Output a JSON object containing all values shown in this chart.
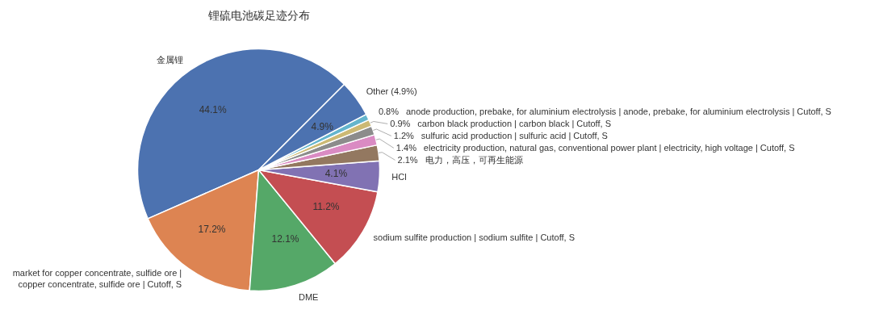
{
  "chart_data": {
    "type": "pie",
    "title": "锂硫电池碳足迹分布",
    "categories": [
      "金属锂",
      "market for copper concentrate, sulfide ore | copper concentrate, sulfide ore | Cutoff, S",
      "DME",
      "sodium sulfite production | sodium sulfite | Cutoff, S",
      "HCl",
      "电力，高压，可再生能源",
      "electricity production, natural gas, conventional power plant | electricity, high voltage | Cutoff, S",
      "sulfuric acid production | sulfuric acid | Cutoff, S",
      "carbon black production | carbon black | Cutoff, S",
      "anode production, prebake, for aluminium electrolysis | anode, prebake, for aluminium electrolysis | Cutoff, S",
      "Other (4.9%)"
    ],
    "values": [
      44.1,
      17.2,
      12.1,
      11.2,
      4.1,
      2.1,
      1.4,
      1.2,
      0.9,
      0.8,
      4.9
    ],
    "value_labels": [
      "44.1%",
      "17.2%",
      "12.1%",
      "11.2%",
      "4.1%",
      "2.1%",
      "1.4%",
      "1.2%",
      "0.9%",
      "0.8%",
      "4.9%"
    ],
    "colors": [
      "#4c72b0",
      "#dd8452",
      "#55a868",
      "#c44e52",
      "#8172b3",
      "#937860",
      "#da8bc3",
      "#8c8c8c",
      "#ccb974",
      "#64b5cd",
      "#4c72b0"
    ]
  }
}
